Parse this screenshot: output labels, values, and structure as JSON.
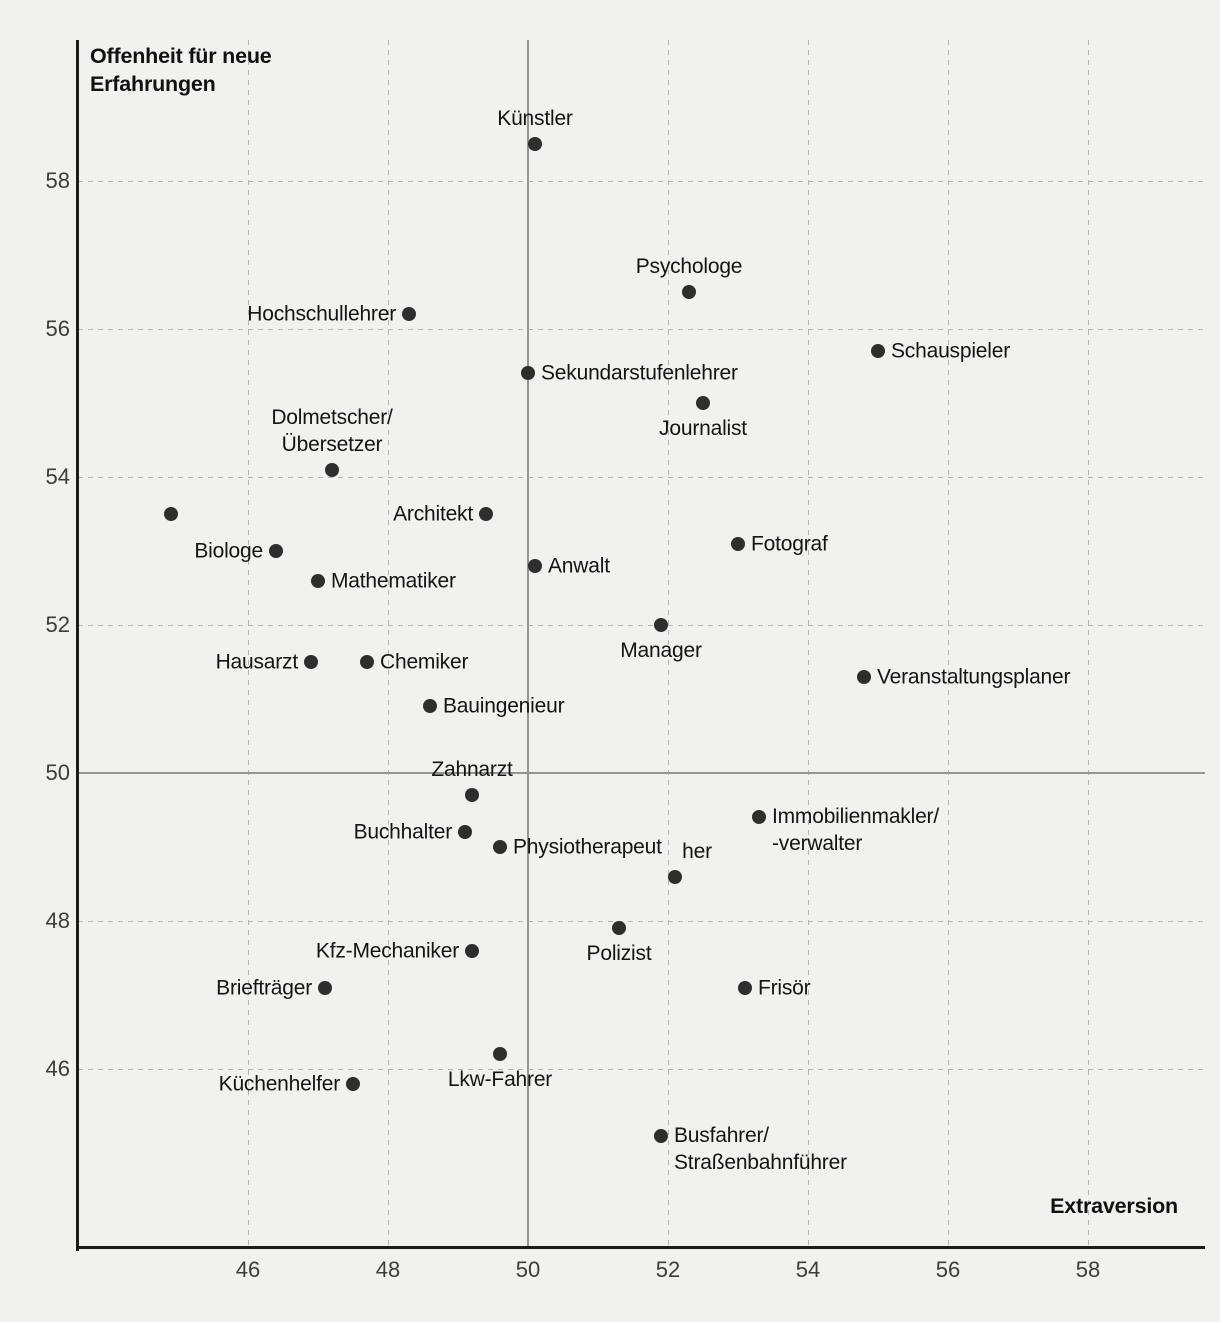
{
  "chart_data": {
    "type": "scatter",
    "xlabel": "Extraversion",
    "ylabel_lines": [
      "Offenheit für neue",
      "Erfahrungen"
    ],
    "x_ticks": [
      46,
      48,
      50,
      52,
      54,
      56,
      58
    ],
    "y_ticks": [
      46,
      48,
      50,
      52,
      54,
      56,
      58
    ],
    "xlim": [
      43.6,
      59.7
    ],
    "ylim": [
      43.6,
      59.9
    ],
    "grid": "dashed",
    "reference_lines": {
      "x": 50,
      "y": 50
    },
    "points": [
      {
        "label": "Künstler",
        "x": 50.1,
        "y": 58.5,
        "pos": "above"
      },
      {
        "label": "Psychologe",
        "x": 52.3,
        "y": 56.5,
        "pos": "above"
      },
      {
        "label": "Hochschullehrer",
        "x": 48.3,
        "y": 56.2,
        "pos": "left"
      },
      {
        "label": "Schauspieler",
        "x": 55.0,
        "y": 55.7,
        "pos": "right"
      },
      {
        "label": "Sekundarstufenlehrer",
        "x": 50.0,
        "y": 55.4,
        "pos": "right"
      },
      {
        "label": "Journalist",
        "x": 52.5,
        "y": 55.0,
        "pos": "below"
      },
      {
        "label": "Dolmetscher/\nÜbersetzer",
        "x": 47.2,
        "y": 54.1,
        "pos": "above"
      },
      {
        "label": "",
        "x": 44.9,
        "y": 53.5,
        "pos": "none"
      },
      {
        "label": "Biologe",
        "x": 46.4,
        "y": 53.0,
        "pos": "left"
      },
      {
        "label": "Mathematiker",
        "x": 47.0,
        "y": 52.6,
        "pos": "right"
      },
      {
        "label": "Architekt",
        "x": 49.4,
        "y": 53.5,
        "pos": "left"
      },
      {
        "label": "Anwalt",
        "x": 50.1,
        "y": 52.8,
        "pos": "right"
      },
      {
        "label": "Fotograf",
        "x": 53.0,
        "y": 53.1,
        "pos": "right"
      },
      {
        "label": "Manager",
        "x": 51.9,
        "y": 52.0,
        "pos": "below"
      },
      {
        "label": "Hausarzt",
        "x": 46.9,
        "y": 51.5,
        "pos": "left"
      },
      {
        "label": "Chemiker",
        "x": 47.7,
        "y": 51.5,
        "pos": "right"
      },
      {
        "label": "Veranstaltungsplaner",
        "x": 54.8,
        "y": 51.3,
        "pos": "right"
      },
      {
        "label": "Bauingenieur",
        "x": 48.6,
        "y": 50.9,
        "pos": "right"
      },
      {
        "label": "Zahnarzt",
        "x": 49.2,
        "y": 49.7,
        "pos": "above"
      },
      {
        "label": "Buchhalter",
        "x": 49.1,
        "y": 49.2,
        "pos": "left"
      },
      {
        "label": "Physiotherapeut",
        "x": 49.6,
        "y": 49.0,
        "pos": "right"
      },
      {
        "label": "her",
        "x": 52.1,
        "y": 48.6,
        "pos": "above",
        "dx": 22
      },
      {
        "label": "Immobilienmakler/\n-verwalter",
        "x": 53.3,
        "y": 49.4,
        "pos": "right"
      },
      {
        "label": "Polizist",
        "x": 51.3,
        "y": 47.9,
        "pos": "below"
      },
      {
        "label": "Kfz-Mechaniker",
        "x": 49.2,
        "y": 47.6,
        "pos": "left"
      },
      {
        "label": "Frisör",
        "x": 53.1,
        "y": 47.1,
        "pos": "right"
      },
      {
        "label": "Briefträger",
        "x": 47.1,
        "y": 47.1,
        "pos": "left"
      },
      {
        "label": "Lkw-Fahrer",
        "x": 49.6,
        "y": 46.2,
        "pos": "below"
      },
      {
        "label": "Küchenhelfer",
        "x": 47.5,
        "y": 45.8,
        "pos": "left"
      },
      {
        "label": "Busfahrer/\nStraßenbahnführer",
        "x": 51.9,
        "y": 45.1,
        "pos": "right"
      }
    ]
  },
  "colors": {
    "background": "#f1f1ef",
    "dot": "#2e2e2e",
    "grid_dashed": "#b3b3b3",
    "grid_solid": "#949494",
    "axis": "#1c1c1c",
    "text": "#141414"
  }
}
